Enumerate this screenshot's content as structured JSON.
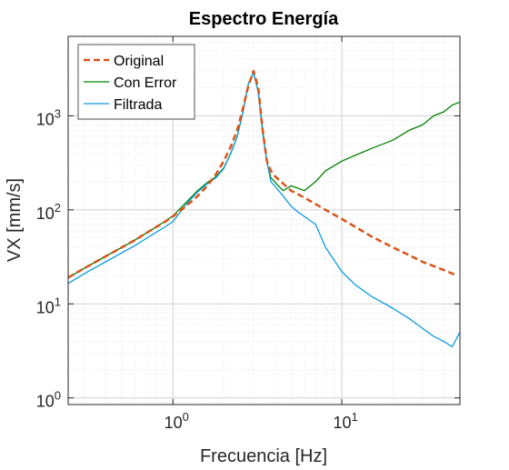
{
  "chart_data": {
    "type": "line",
    "title": "Espectro Energía",
    "xlabel": "Frecuencia [Hz]",
    "ylabel": "VX [mm/s]",
    "xscale": "log",
    "yscale": "log",
    "xlim": [
      0.24,
      50
    ],
    "ylim": [
      0.85,
      7000
    ],
    "grid": "major and minor",
    "legend_position": "top-left",
    "x_ticks": [
      {
        "value": 1,
        "base": "10",
        "exp": "0"
      },
      {
        "value": 10,
        "base": "10",
        "exp": "1"
      }
    ],
    "y_ticks": [
      {
        "value": 1,
        "base": "10",
        "exp": "0"
      },
      {
        "value": 10,
        "base": "10",
        "exp": "1"
      },
      {
        "value": 100,
        "base": "10",
        "exp": "2"
      },
      {
        "value": 1000,
        "base": "10",
        "exp": "3"
      }
    ],
    "series": [
      {
        "name": "Original",
        "color": "#D95319",
        "style": "dashed",
        "x": [
          0.24,
          0.3,
          0.4,
          0.5,
          0.6,
          0.7,
          0.8,
          0.9,
          1.0,
          1.2,
          1.4,
          1.6,
          1.8,
          2.0,
          2.2,
          2.4,
          2.6,
          2.8,
          3.0,
          3.2,
          3.4,
          3.6,
          3.8,
          4.0,
          4.5,
          5.0,
          6.0,
          7.0,
          8.0,
          10,
          12,
          15,
          20,
          25,
          30,
          40,
          48
        ],
        "y": [
          19,
          24,
          32,
          40,
          48,
          57,
          66,
          75,
          85,
          110,
          140,
          180,
          240,
          330,
          470,
          700,
          1200,
          2100,
          3000,
          2000,
          700,
          330,
          260,
          230,
          190,
          160,
          135,
          115,
          100,
          80,
          66,
          52,
          40,
          33,
          28,
          23,
          20
        ]
      },
      {
        "name": "Con Error",
        "color": "#008000",
        "style": "solid",
        "x": [
          0.24,
          0.3,
          0.4,
          0.5,
          0.6,
          0.7,
          0.8,
          0.9,
          1.0,
          1.2,
          1.4,
          1.6,
          1.8,
          2.0,
          2.2,
          2.4,
          2.6,
          2.8,
          3.0,
          3.2,
          3.4,
          3.6,
          3.8,
          4.0,
          4.2,
          4.5,
          5.0,
          5.5,
          6.0,
          7.0,
          8.0,
          10,
          12,
          15,
          20,
          25,
          30,
          35,
          40,
          45,
          50
        ],
        "y": [
          19,
          24,
          32,
          40,
          48,
          57,
          66,
          76,
          86,
          120,
          160,
          195,
          225,
          280,
          400,
          600,
          1100,
          2200,
          2900,
          1800,
          700,
          320,
          220,
          200,
          180,
          160,
          180,
          170,
          160,
          200,
          260,
          330,
          380,
          450,
          550,
          700,
          800,
          1000,
          1100,
          1300,
          1400
        ]
      },
      {
        "name": "Filtrada",
        "color": "#0B9BE0",
        "style": "solid",
        "x": [
          0.24,
          0.3,
          0.4,
          0.5,
          0.6,
          0.7,
          0.8,
          0.9,
          1.0,
          1.2,
          1.4,
          1.6,
          1.8,
          2.0,
          2.2,
          2.4,
          2.6,
          2.8,
          3.0,
          3.2,
          3.4,
          3.6,
          3.8,
          4.0,
          4.5,
          5.0,
          5.5,
          6.0,
          7.0,
          8.0,
          10,
          12,
          15,
          20,
          25,
          30,
          35,
          40,
          45,
          50
        ],
        "y": [
          16.5,
          21,
          28,
          35,
          42,
          50,
          58,
          66,
          75,
          115,
          155,
          190,
          220,
          275,
          400,
          600,
          1100,
          2200,
          2900,
          1800,
          650,
          330,
          200,
          180,
          140,
          110,
          95,
          85,
          70,
          40,
          22,
          16,
          12,
          9,
          7,
          5.5,
          4.5,
          4,
          3.5,
          5
        ]
      }
    ]
  }
}
